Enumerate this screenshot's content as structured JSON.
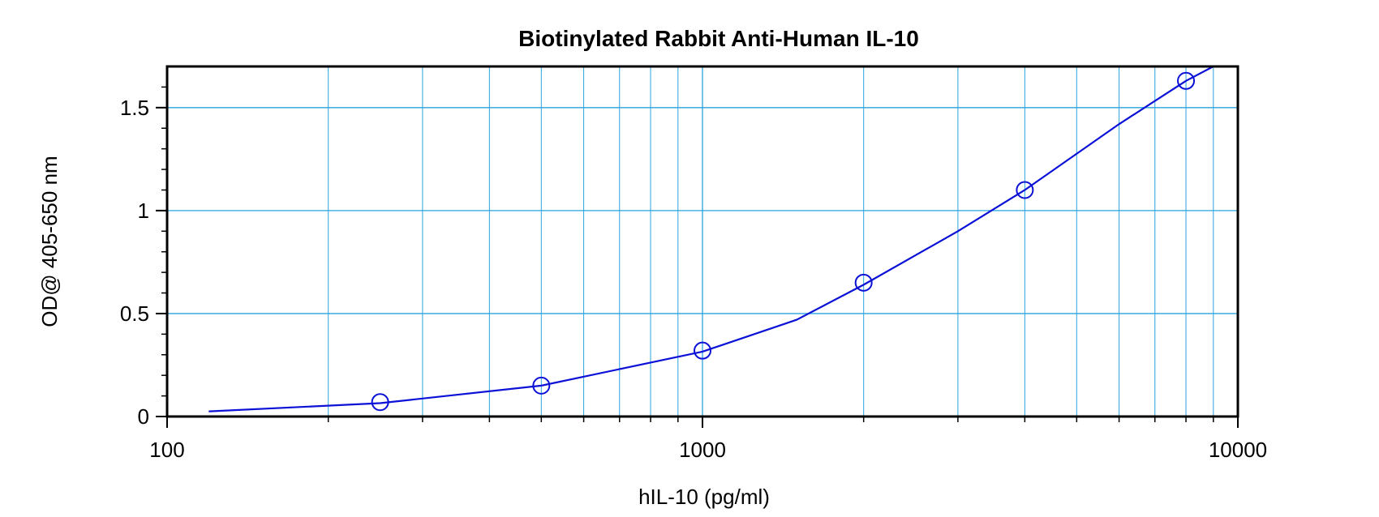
{
  "chart_data": {
    "type": "scatter",
    "title": "Biotinylated Rabbit Anti-Human IL-10",
    "xlabel": "hIL-10 (pg/ml)",
    "ylabel": "OD@ 405-650 nm",
    "xscale": "log",
    "xlim": [
      100,
      10000
    ],
    "ylim": [
      0,
      1.7
    ],
    "xticks": [
      "100",
      "1000",
      "10000"
    ],
    "yticks": [
      "0",
      "0.5",
      "1",
      "1.5"
    ],
    "grid": true,
    "legend": "none",
    "colors": {
      "grid": "#29a3df",
      "series": "#0b11d6",
      "frame": "#000000"
    },
    "series": [
      {
        "points": [
          {
            "x": 250,
            "y": 0.07
          },
          {
            "x": 500,
            "y": 0.15
          },
          {
            "x": 1000,
            "y": 0.32
          },
          {
            "x": 2000,
            "y": 0.65
          },
          {
            "x": 4000,
            "y": 1.1
          },
          {
            "x": 8000,
            "y": 1.63
          }
        ],
        "fit_curve": [
          {
            "x": 120,
            "y": 0.025
          },
          {
            "x": 250,
            "y": 0.065
          },
          {
            "x": 500,
            "y": 0.15
          },
          {
            "x": 1000,
            "y": 0.315
          },
          {
            "x": 1500,
            "y": 0.47
          },
          {
            "x": 2000,
            "y": 0.64
          },
          {
            "x": 3000,
            "y": 0.9
          },
          {
            "x": 4000,
            "y": 1.1
          },
          {
            "x": 6000,
            "y": 1.42
          },
          {
            "x": 8000,
            "y": 1.63
          },
          {
            "x": 9000,
            "y": 1.7
          }
        ]
      }
    ]
  }
}
